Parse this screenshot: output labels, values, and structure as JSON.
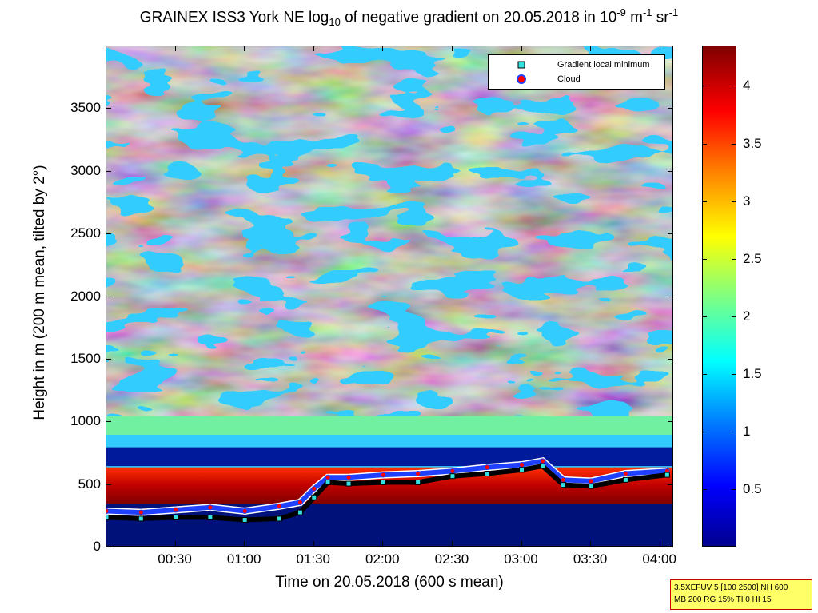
{
  "title_parts": {
    "a": "GRAINEX ISS3 York NE log",
    "b": "10",
    "c": " of negative gradient on 20.05.2018 in 10",
    "d": "-9",
    "e": " m",
    "f": "-1",
    "g": " sr",
    "h": "-1"
  },
  "chart_data": {
    "type": "heatmap",
    "xlabel": "Time on 20.05.2018 (600 s mean)",
    "ylabel": "Height in m (200 m mean, tilted by 2°)",
    "x_ticks": [
      "00:30",
      "01:00",
      "01:30",
      "02:00",
      "02:30",
      "03:00",
      "03:30",
      "04:00"
    ],
    "x_range_hours": [
      0.0,
      4.1
    ],
    "y_ticks": [
      "0",
      "500",
      "1000",
      "1500",
      "2000",
      "2500",
      "3000",
      "3500"
    ],
    "ylim": [
      0,
      4000
    ],
    "colorbar_ticks": [
      "0.5",
      "1",
      "1.5",
      "2",
      "2.5",
      "3",
      "3.5",
      "4"
    ],
    "colorbar_range": [
      0,
      4.35
    ],
    "colormap": "jet",
    "legend": {
      "position": "top-right",
      "entries": [
        {
          "label": "Gradient local minimum",
          "marker": "cyan-square",
          "color": "#33e0e0"
        },
        {
          "label": "Cloud",
          "marker": "red-circle",
          "color": "#ff0000"
        }
      ]
    },
    "series": [
      {
        "name": "Gradient local minimum",
        "x": [
          0.0,
          0.25,
          0.5,
          0.75,
          1.0,
          1.25,
          1.4,
          1.5,
          1.6,
          1.75,
          2.0,
          2.25,
          2.5,
          2.75,
          3.0,
          3.15,
          3.3,
          3.5,
          3.75,
          4.05
        ],
        "y": [
          240,
          230,
          240,
          240,
          220,
          230,
          280,
          400,
          520,
          510,
          520,
          520,
          570,
          590,
          620,
          650,
          500,
          490,
          540,
          580
        ]
      },
      {
        "name": "Cloud",
        "x": [
          0.0,
          0.25,
          0.5,
          0.75,
          1.0,
          1.25,
          1.4,
          1.5,
          1.6,
          1.75,
          2.0,
          2.25,
          2.5,
          2.75,
          3.0,
          3.15,
          3.3,
          3.5,
          3.75,
          4.05
        ],
        "y": [
          290,
          280,
          300,
          320,
          290,
          330,
          360,
          470,
          560,
          560,
          580,
          590,
          610,
          640,
          660,
          690,
          540,
          530,
          590,
          610
        ]
      }
    ]
  },
  "info_box": {
    "line1": "3.5XEFUV 5 [100 2500] NH 600",
    "line2": "MB 200 RG 15% TI 0 HI 15"
  }
}
